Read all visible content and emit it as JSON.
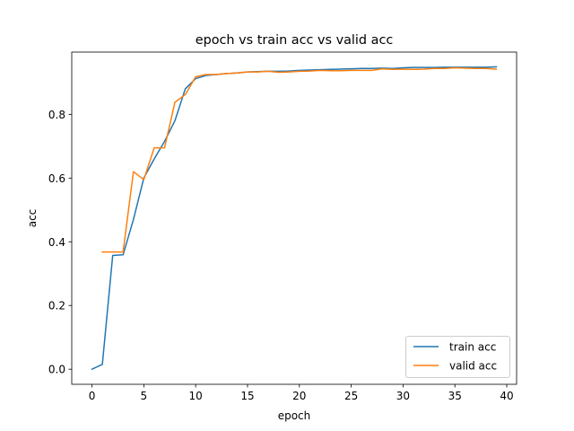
{
  "chart_data": {
    "type": "line",
    "title": "epoch vs train acc vs valid acc",
    "xlabel": "epoch",
    "ylabel": "acc",
    "xlim": [
      -1.95,
      40.95
    ],
    "ylim": [
      -0.0474,
      0.9954
    ],
    "xticks": [
      0,
      5,
      10,
      15,
      20,
      25,
      30,
      35,
      40
    ],
    "yticks": [
      0.0,
      0.2,
      0.4,
      0.6,
      0.8
    ],
    "ytick_labels": [
      "0.0",
      "0.2",
      "0.4",
      "0.6",
      "0.8"
    ],
    "grid": false,
    "legend_position": "lower right",
    "series": [
      {
        "name": "train acc",
        "color": "#1f77b4",
        "x": [
          0,
          1,
          2,
          3,
          4,
          5,
          6,
          7,
          8,
          9,
          10,
          11,
          12,
          13,
          14,
          15,
          16,
          17,
          18,
          19,
          20,
          21,
          22,
          23,
          24,
          25,
          26,
          27,
          28,
          29,
          30,
          31,
          32,
          33,
          34,
          35,
          36,
          37,
          38,
          39
        ],
        "y": [
          0.0,
          0.015,
          0.357,
          0.359,
          0.47,
          0.6,
          0.66,
          0.715,
          0.78,
          0.88,
          0.912,
          0.922,
          0.925,
          0.928,
          0.93,
          0.933,
          0.934,
          0.935,
          0.935,
          0.936,
          0.938,
          0.939,
          0.94,
          0.941,
          0.942,
          0.943,
          0.944,
          0.944,
          0.945,
          0.944,
          0.946,
          0.947,
          0.947,
          0.947,
          0.948,
          0.948,
          0.948,
          0.948,
          0.948,
          0.949
        ]
      },
      {
        "name": "valid acc",
        "color": "#ff7f0e",
        "x": [
          1,
          2,
          3,
          4,
          5,
          6,
          7,
          8,
          9,
          10,
          11,
          12,
          13,
          14,
          15,
          16,
          17,
          18,
          19,
          20,
          21,
          22,
          23,
          24,
          25,
          26,
          27,
          28,
          29,
          30,
          31,
          32,
          33,
          34,
          35,
          36,
          37,
          38,
          39
        ],
        "y": [
          0.368,
          0.368,
          0.368,
          0.62,
          0.595,
          0.695,
          0.695,
          0.838,
          0.862,
          0.918,
          0.925,
          0.925,
          0.928,
          0.93,
          0.933,
          0.933,
          0.935,
          0.932,
          0.933,
          0.935,
          0.936,
          0.938,
          0.937,
          0.937,
          0.938,
          0.938,
          0.938,
          0.943,
          0.941,
          0.942,
          0.941,
          0.942,
          0.944,
          0.944,
          0.946,
          0.945,
          0.944,
          0.944,
          0.942
        ]
      }
    ]
  }
}
